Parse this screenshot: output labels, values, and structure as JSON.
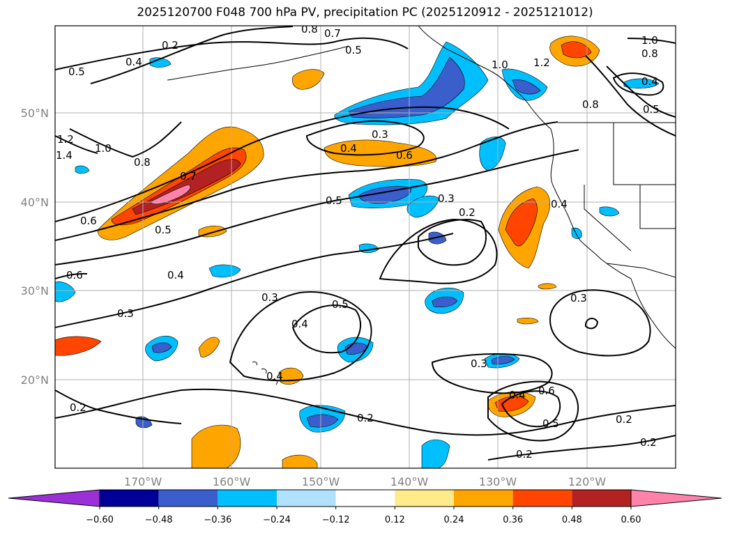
{
  "title": "2025120700 F048 700 hPa PV, precipitation PC (2025120912 - 2025121012)",
  "lat_labels": [
    "50°N",
    "40°N",
    "30°N",
    "20°N"
  ],
  "lon_labels": [
    "170°W",
    "160°W",
    "150°W",
    "140°W",
    "130°W",
    "120°W"
  ],
  "colorbar": {
    "ticks": [
      "−0.60",
      "−0.48",
      "−0.36",
      "−0.24",
      "−0.12",
      "0.12",
      "0.24",
      "0.36",
      "0.48",
      "0.60"
    ],
    "colors": [
      "#9b30d9",
      "#000099",
      "#3a5fcd",
      "#00bfff",
      "#b0e2ff",
      "#ffffff",
      "#ffeb8a",
      "#ffa500",
      "#ff4500",
      "#b22222",
      "#ff82ab"
    ]
  },
  "contour_labels": [
    {
      "text": "0.2"
    },
    {
      "text": "0.4"
    },
    {
      "text": "0.5"
    },
    {
      "text": "0.8"
    },
    {
      "text": "0.7"
    },
    {
      "text": "0.5"
    },
    {
      "text": "1.0"
    },
    {
      "text": "1.2"
    },
    {
      "text": "1.0"
    },
    {
      "text": "0.8"
    },
    {
      "text": "0.4"
    },
    {
      "text": "0.5"
    },
    {
      "text": "0.8"
    },
    {
      "text": "1.2"
    },
    {
      "text": "1.4"
    },
    {
      "text": "1.0"
    },
    {
      "text": "0.8"
    },
    {
      "text": "0.7"
    },
    {
      "text": "0.6"
    },
    {
      "text": "0.5"
    },
    {
      "text": "0.3"
    },
    {
      "text": "0.4"
    },
    {
      "text": "0.6"
    },
    {
      "text": "0.5"
    },
    {
      "text": "0.3"
    },
    {
      "text": "0.2"
    },
    {
      "text": "0.4"
    },
    {
      "text": "0.6"
    },
    {
      "text": "0.4"
    },
    {
      "text": "0.3"
    },
    {
      "text": "0.3"
    },
    {
      "text": "0.4"
    },
    {
      "text": "0.5"
    },
    {
      "text": "0.3"
    },
    {
      "text": "0.3"
    },
    {
      "text": "0.4"
    },
    {
      "text": "0.6"
    },
    {
      "text": "0.5"
    },
    {
      "text": "0.2"
    },
    {
      "text": "0.2"
    },
    {
      "text": "0.2"
    },
    {
      "text": "0.2"
    },
    {
      "text": "0.2"
    },
    {
      "text": "0.4"
    }
  ]
}
